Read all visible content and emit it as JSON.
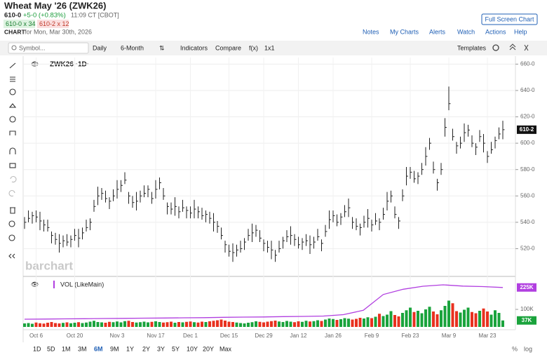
{
  "header": {
    "title": "Wheat May '26 (ZWK26)",
    "last": "610-0",
    "change": "+5-0 (+0.83%)",
    "time": "11:09 CT [CBOT]",
    "bid": "610-0 x 34",
    "ask": "610-2 x 12",
    "chart_label": "CHART",
    "chart_date": "for Mon, Mar 30th, 2026",
    "full_screen": "Full Screen Chart"
  },
  "menu": [
    "Notes",
    "My Charts",
    "Alerts",
    "Watch",
    "Actions",
    "Help"
  ],
  "toolbar": {
    "symbol": "Symbol...",
    "interval": "Daily",
    "range": "6-Month",
    "indicators": "Indicators",
    "compare": "Compare",
    "fx": "f(x)",
    "layout": "1x1",
    "templates": "Templates"
  },
  "watermark": "barchart",
  "range_buttons": [
    "1D",
    "5D",
    "1M",
    "3M",
    "6M",
    "9M",
    "1Y",
    "2Y",
    "3Y",
    "5Y",
    "10Y",
    "20Y",
    "Max"
  ],
  "scale_buttons": [
    "%",
    "log"
  ],
  "chart_data": {
    "type": "ohlc",
    "title": "ZWK26 ·1D·",
    "grid": true,
    "color": "#222222",
    "categories": [
      null,
      null,
      null,
      "Oct 6",
      null,
      null,
      null,
      null,
      null,
      null,
      null,
      null,
      null,
      "Oct 20",
      null,
      null,
      null,
      null,
      null,
      null,
      null,
      null,
      null,
      null,
      "Nov 3",
      null,
      null,
      null,
      null,
      null,
      null,
      null,
      null,
      null,
      "Nov 17",
      null,
      null,
      null,
      null,
      null,
      null,
      null,
      null,
      "Dec 1",
      null,
      null,
      null,
      null,
      null,
      null,
      null,
      null,
      null,
      "Dec 15",
      null,
      null,
      null,
      null,
      null,
      null,
      null,
      null,
      "Dec 29",
      null,
      null,
      null,
      null,
      null,
      null,
      null,
      null,
      "Jan 12",
      null,
      null,
      null,
      null,
      null,
      null,
      null,
      null,
      "Jan 26",
      null,
      null,
      null,
      null,
      null,
      null,
      null,
      null,
      null,
      "Feb 9",
      null,
      null,
      null,
      null,
      null,
      null,
      null,
      null,
      null,
      "Feb 23",
      null,
      null,
      null,
      null,
      null,
      null,
      null,
      null,
      null,
      "Mar 9",
      null,
      null,
      null,
      null,
      null,
      null,
      null,
      null,
      null,
      "Mar 23",
      null,
      null,
      null,
      null
    ],
    "values": [
      540,
      543,
      545,
      544,
      541,
      538,
      536,
      530,
      527,
      524,
      526,
      525,
      527,
      530,
      528,
      532,
      536,
      540,
      552,
      560,
      562,
      558,
      556,
      560,
      565,
      568,
      572,
      560,
      555,
      556,
      560,
      562,
      565,
      558,
      565,
      570,
      560,
      552,
      550,
      552,
      548,
      551,
      549,
      547,
      550,
      548,
      545,
      546,
      543,
      540,
      537,
      530,
      523,
      518,
      517,
      519,
      520,
      525,
      530,
      532,
      534,
      528,
      524,
      521,
      519,
      515,
      520,
      526,
      529,
      530,
      527,
      523,
      525,
      526,
      523,
      525,
      529,
      524,
      533,
      542,
      545,
      540,
      544,
      548,
      551,
      540,
      537,
      536,
      540,
      543,
      538,
      541,
      540,
      546,
      556,
      560,
      546,
      541,
      560,
      575,
      578,
      573,
      575,
      580,
      590,
      600,
      580,
      570,
      580,
      612,
      630,
      605,
      598,
      600,
      608,
      610,
      600,
      597,
      605,
      600,
      590,
      595,
      602,
      607,
      610.25
    ],
    "high": [
      544,
      549,
      548,
      549,
      548,
      542,
      542,
      533,
      532,
      531,
      530,
      531,
      530,
      535,
      535,
      536,
      542,
      543,
      557,
      567,
      566,
      564,
      559,
      565,
      572,
      572,
      578,
      563,
      560,
      563,
      564,
      568,
      568,
      563,
      572,
      574,
      566,
      555,
      555,
      559,
      552,
      557,
      552,
      552,
      557,
      552,
      551,
      549,
      548,
      547,
      541,
      536,
      526,
      523,
      524,
      523,
      526,
      528,
      535,
      539,
      538,
      534,
      527,
      526,
      526,
      519,
      526,
      529,
      534,
      537,
      531,
      529,
      528,
      531,
      530,
      529,
      535,
      527,
      538,
      549,
      549,
      546,
      547,
      553,
      558,
      544,
      543,
      539,
      545,
      550,
      542,
      547,
      543,
      551,
      563,
      564,
      552,
      544,
      565,
      582,
      582,
      579,
      578,
      585,
      597,
      604,
      586,
      573,
      585,
      619,
      643,
      611,
      601,
      605,
      615,
      614,
      606,
      600,
      610,
      607,
      594,
      601,
      605,
      612,
      617
    ],
    "low": [
      535,
      540,
      539,
      540,
      534,
      533,
      533,
      524,
      523,
      517,
      521,
      522,
      521,
      526,
      521,
      527,
      533,
      534,
      548,
      553,
      557,
      555,
      550,
      556,
      558,
      563,
      569,
      554,
      551,
      549,
      555,
      559,
      559,
      554,
      558,
      565,
      557,
      546,
      546,
      545,
      543,
      548,
      543,
      543,
      543,
      543,
      542,
      540,
      539,
      533,
      532,
      527,
      517,
      514,
      510,
      514,
      517,
      519,
      526,
      525,
      529,
      525,
      518,
      517,
      512,
      510,
      517,
      520,
      525,
      523,
      522,
      520,
      519,
      522,
      516,
      520,
      526,
      518,
      529,
      535,
      540,
      537,
      538,
      544,
      544,
      535,
      534,
      530,
      536,
      536,
      533,
      538,
      534,
      542,
      549,
      555,
      543,
      535,
      556,
      568,
      573,
      570,
      569,
      576,
      583,
      595,
      577,
      564,
      576,
      605,
      625,
      602,
      592,
      596,
      601,
      605,
      597,
      591,
      601,
      593,
      585,
      592,
      596,
      603,
      603
    ],
    "last_tag": "610-2",
    "ylim": [
      500,
      665
    ],
    "yticks": [
      {
        "value": 520,
        "label": "520-0"
      },
      {
        "value": 540,
        "label": "540-0"
      },
      {
        "value": 560,
        "label": "560-0"
      },
      {
        "value": 580,
        "label": "580-0"
      },
      {
        "value": 600,
        "label": "600-0"
      },
      {
        "value": 620,
        "label": "620-0"
      },
      {
        "value": 640,
        "label": "640-0"
      },
      {
        "value": 660,
        "label": "660-0"
      }
    ],
    "volume": {
      "name": "VOL (LikeMain)",
      "up_color": "#1aa33c",
      "down_color": "#e8311f",
      "values": [
        20000,
        22000,
        18000,
        25000,
        21000,
        19000,
        24000,
        28000,
        22000,
        20000,
        23000,
        26000,
        21000,
        24000,
        27000,
        22000,
        25000,
        30000,
        35000,
        28000,
        26000,
        24000,
        29000,
        27000,
        31000,
        26000,
        33000,
        35000,
        28000,
        25000,
        27000,
        30000,
        26000,
        29000,
        32000,
        28000,
        25000,
        27000,
        30000,
        24000,
        28000,
        26000,
        29000,
        31000,
        27000,
        25000,
        30000,
        28000,
        32000,
        35000,
        38000,
        42000,
        36000,
        30000,
        28000,
        25000,
        22000,
        20000,
        24000,
        27000,
        32000,
        29000,
        26000,
        30000,
        33000,
        36000,
        31000,
        28000,
        34000,
        30000,
        27000,
        32000,
        29000,
        35000,
        31000,
        33000,
        38000,
        34000,
        42000,
        48000,
        45000,
        40000,
        44000,
        50000,
        47000,
        42000,
        46000,
        52000,
        48000,
        55000,
        50000,
        58000,
        75000,
        62000,
        70000,
        90000,
        68000,
        60000,
        80000,
        95000,
        110000,
        85000,
        92000,
        78000,
        100000,
        115000,
        88000,
        72000,
        95000,
        120000,
        150000,
        135000,
        90000,
        82000,
        98000,
        110000,
        85000,
        78000,
        92000,
        105000,
        88000,
        70000,
        95000,
        80000,
        37000
      ],
      "last_tag": "37K"
    },
    "volume_average": {
      "color": "#b13fe0",
      "values": [
        44000,
        45000,
        46000,
        47000,
        48000,
        49000,
        50000,
        51000,
        52000,
        53000,
        55000,
        56000,
        57000,
        59000,
        60000,
        62000,
        70000,
        95000,
        185000,
        215000,
        232000,
        240000,
        233000,
        230000,
        225000
      ],
      "last_tag": "225K"
    },
    "y2lim": [
      0,
      272000
    ],
    "y2ticks": [
      {
        "value": 100000,
        "label": "100K"
      }
    ]
  }
}
